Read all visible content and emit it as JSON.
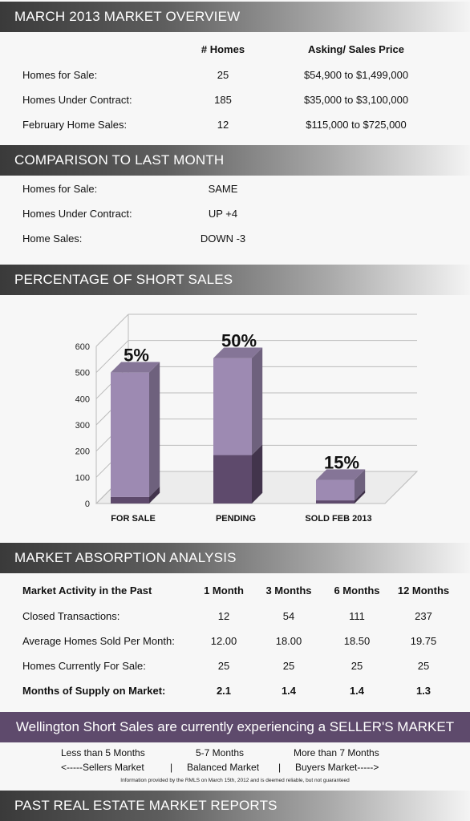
{
  "sections": {
    "overview": "MARCH 2013 MARKET OVERVIEW",
    "comparison": "COMPARISON TO LAST MONTH",
    "short_sales": "PERCENTAGE OF SHORT SALES",
    "absorption": "MARKET ABSORPTION ANALYSIS",
    "past_reports": "PAST REAL ESTATE MARKET REPORTS"
  },
  "overview": {
    "col_homes": "# Homes",
    "col_price": "Asking/ Sales Price",
    "rows": [
      {
        "label": "Homes for Sale:",
        "homes": "25",
        "price": "$54,900 to $1,499,000"
      },
      {
        "label": "Homes Under Contract:",
        "homes": "185",
        "price": "$35,000 to $3,100,000"
      },
      {
        "label": "February Home Sales:",
        "homes": "12",
        "price": "$115,000 to $725,000"
      }
    ]
  },
  "comparison": {
    "rows": [
      {
        "label": "Homes for Sale:",
        "value": "SAME"
      },
      {
        "label": "Homes Under Contract:",
        "value": "UP +4"
      },
      {
        "label": "Home Sales:",
        "value": "DOWN -3"
      }
    ]
  },
  "chart_data": {
    "type": "bar",
    "stacked": true,
    "three_d": true,
    "categories": [
      "FOR SALE",
      "PENDING",
      "SOLD FEB 2013"
    ],
    "series": [
      {
        "values": [
          25,
          185,
          12
        ],
        "color": "#5e4a6c"
      },
      {
        "values": [
          475,
          370,
          78
        ],
        "color": "#9d8ab2"
      }
    ],
    "data_labels": [
      "5%",
      "50%",
      "15%"
    ],
    "ylim": [
      0,
      600
    ],
    "yticks": [
      "0",
      "100",
      "200",
      "300",
      "400",
      "500",
      "600"
    ],
    "grid": true
  },
  "absorption": {
    "headers": [
      "Market Activity in the Past",
      "1 Month",
      "3 Months",
      "6 Months",
      "12 Months"
    ],
    "rows": [
      {
        "label": "Closed Transactions:",
        "values": [
          "12",
          "54",
          "111",
          "237"
        ]
      },
      {
        "label": "Average Homes Sold Per Month:",
        "values": [
          "12.00",
          "18.00",
          "18.50",
          "19.75"
        ]
      },
      {
        "label": "Homes Currently For Sale:",
        "values": [
          "25",
          "25",
          "25",
          "25"
        ]
      },
      {
        "label": "Months of Supply on Market:",
        "values": [
          "2.1",
          "1.4",
          "1.4",
          "1.3"
        ]
      }
    ]
  },
  "banner": "Wellington Short Sales are currently experiencing a SELLER'S MARKET",
  "legend": {
    "less": "Less than 5 Months",
    "mid": "5-7 Months",
    "more": "More than 7 Months",
    "sellers": "<-----Sellers Market",
    "sep1": "|",
    "balanced": "Balanced Market",
    "sep2": "|",
    "buyers": "Buyers Market----->"
  },
  "disclaimer": "Information provided by the RMLS on March 15th, 2012 and is deemed reliable, but not guaranteed"
}
